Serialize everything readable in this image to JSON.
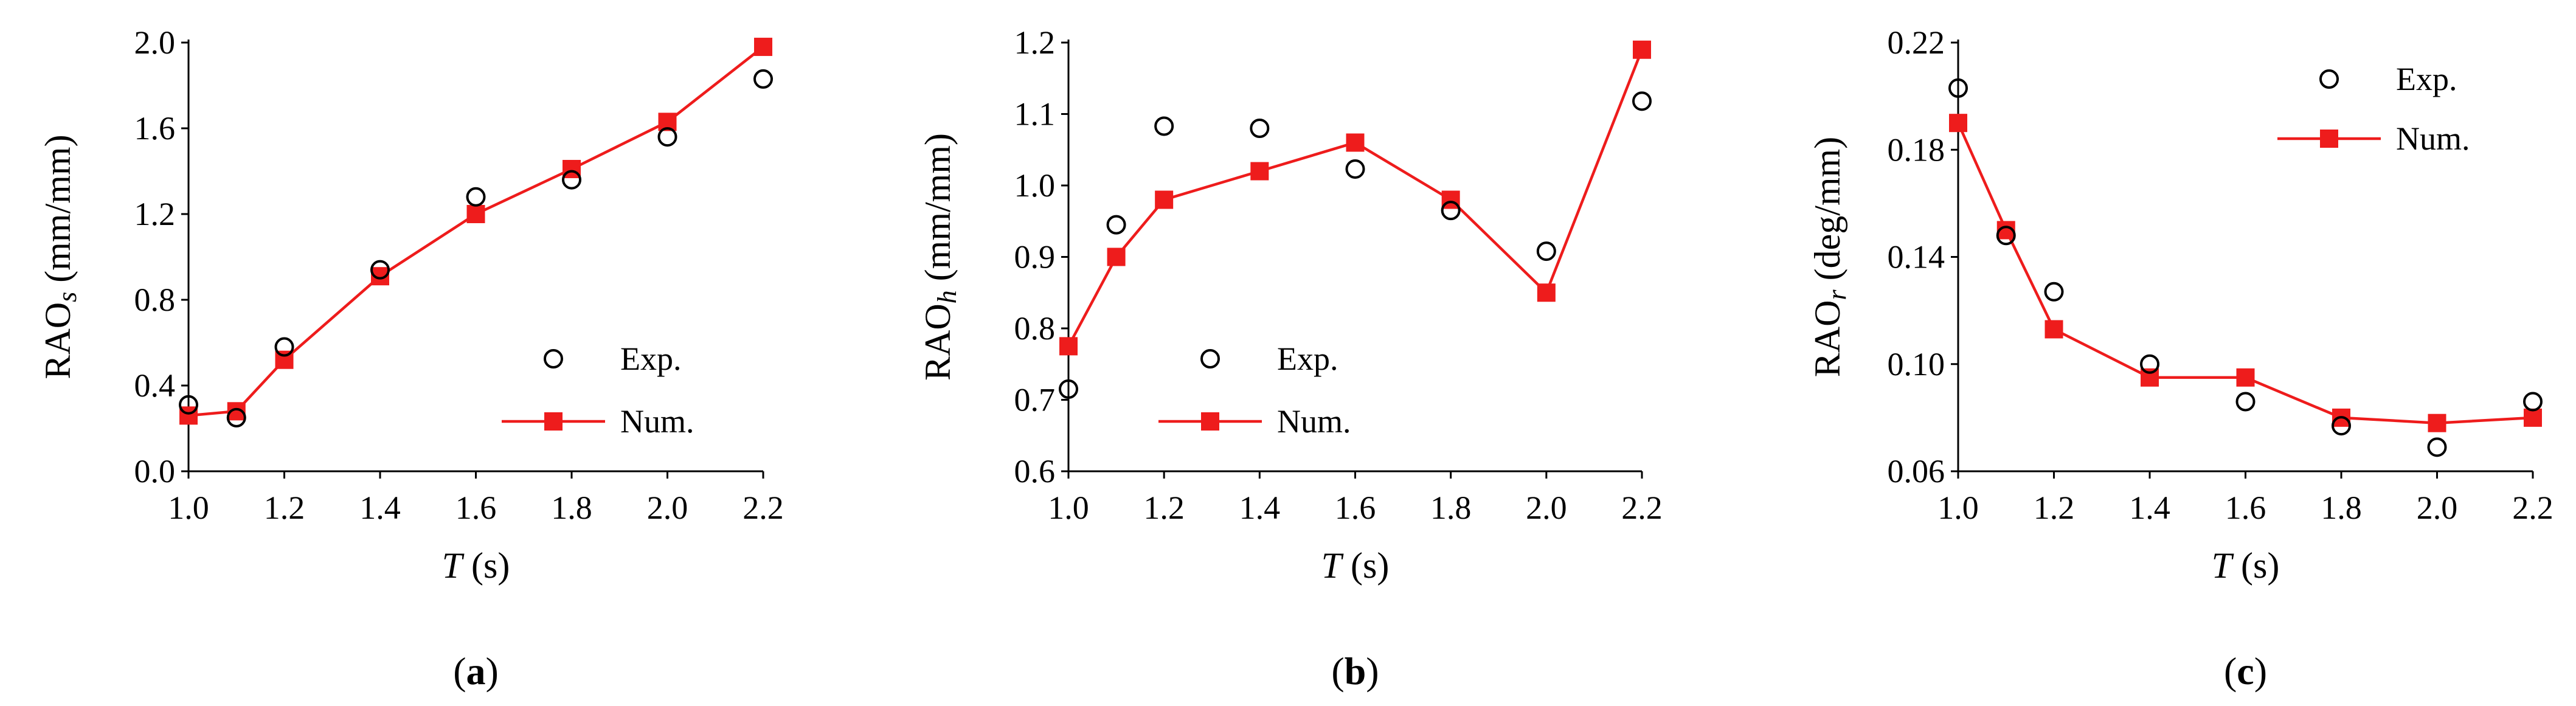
{
  "chart_data": [
    {
      "type": "line",
      "panel_label": "(a)",
      "panel_letter": "a",
      "xlabel": "T (s)",
      "xlabel_var": "T",
      "xlabel_unit": " (s)",
      "ylabel_main": "RAO",
      "ylabel_sub": "s",
      "ylabel_unit": " (mm/mm)",
      "xlim": [
        1.0,
        2.2
      ],
      "ylim": [
        0.0,
        2.0
      ],
      "xticks": [
        "1.0",
        "1.2",
        "1.4",
        "1.6",
        "1.8",
        "2.0",
        "2.2"
      ],
      "yticks": [
        "0.0",
        "0.4",
        "0.8",
        "1.2",
        "1.6",
        "2.0"
      ],
      "legend_position": "bottom-right",
      "series": [
        {
          "name": "Exp.",
          "marker": "open-circle",
          "x": [
            1.0,
            1.1,
            1.2,
            1.4,
            1.6,
            1.8,
            2.0,
            2.2
          ],
          "y": [
            0.31,
            0.25,
            0.58,
            0.94,
            1.28,
            1.36,
            1.56,
            1.83
          ]
        },
        {
          "name": "Num.",
          "marker": "filled-square",
          "color": "#ee1c1c",
          "x": [
            1.0,
            1.1,
            1.2,
            1.4,
            1.6,
            1.8,
            2.0,
            2.2
          ],
          "y": [
            0.26,
            0.28,
            0.52,
            0.91,
            1.2,
            1.41,
            1.63,
            1.98
          ]
        }
      ]
    },
    {
      "type": "line",
      "panel_label": "(b)",
      "panel_letter": "b",
      "xlabel": "T (s)",
      "xlabel_var": "T",
      "xlabel_unit": " (s)",
      "ylabel_main": "RAO",
      "ylabel_sub": "h",
      "ylabel_unit": " (mm/mm)",
      "xlim": [
        1.0,
        2.2
      ],
      "ylim": [
        0.6,
        1.2
      ],
      "xticks": [
        "1.0",
        "1.2",
        "1.4",
        "1.6",
        "1.8",
        "2.0",
        "2.2"
      ],
      "yticks": [
        "0.6",
        "0.7",
        "0.8",
        "0.9",
        "1.0",
        "1.1",
        "1.2"
      ],
      "legend_position": "bottom-center",
      "series": [
        {
          "name": "Exp.",
          "marker": "open-circle",
          "x": [
            1.0,
            1.1,
            1.2,
            1.4,
            1.6,
            1.8,
            2.0,
            2.2
          ],
          "y": [
            0.715,
            0.945,
            1.083,
            1.08,
            1.023,
            0.965,
            0.908,
            1.118
          ]
        },
        {
          "name": "Num.",
          "marker": "filled-square",
          "color": "#ee1c1c",
          "x": [
            1.0,
            1.1,
            1.2,
            1.4,
            1.6,
            1.8,
            2.0,
            2.2
          ],
          "y": [
            0.775,
            0.9,
            0.98,
            1.02,
            1.06,
            0.98,
            0.85,
            1.19
          ]
        }
      ]
    },
    {
      "type": "line",
      "panel_label": "(c)",
      "panel_letter": "c",
      "xlabel": "T (s)",
      "xlabel_var": "T",
      "xlabel_unit": " (s)",
      "ylabel_main": "RAO",
      "ylabel_sub": "r",
      "ylabel_unit": " (deg/mm)",
      "xlim": [
        1.0,
        2.2
      ],
      "ylim": [
        0.06,
        0.22
      ],
      "xticks": [
        "1.0",
        "1.2",
        "1.4",
        "1.6",
        "1.8",
        "2.0",
        "2.2"
      ],
      "yticks": [
        "0.06",
        "0.10",
        "0.14",
        "0.18",
        "0.22"
      ],
      "legend_position": "top-right",
      "series": [
        {
          "name": "Exp.",
          "marker": "open-circle",
          "x": [
            1.0,
            1.1,
            1.2,
            1.4,
            1.6,
            1.8,
            2.0,
            2.2
          ],
          "y": [
            0.203,
            0.148,
            0.127,
            0.1,
            0.086,
            0.077,
            0.069,
            0.086
          ]
        },
        {
          "name": "Num.",
          "marker": "filled-square",
          "color": "#ee1c1c",
          "x": [
            1.0,
            1.1,
            1.2,
            1.4,
            1.6,
            1.8,
            2.0,
            2.2
          ],
          "y": [
            0.19,
            0.15,
            0.113,
            0.095,
            0.095,
            0.08,
            0.078,
            0.08
          ]
        }
      ]
    }
  ]
}
